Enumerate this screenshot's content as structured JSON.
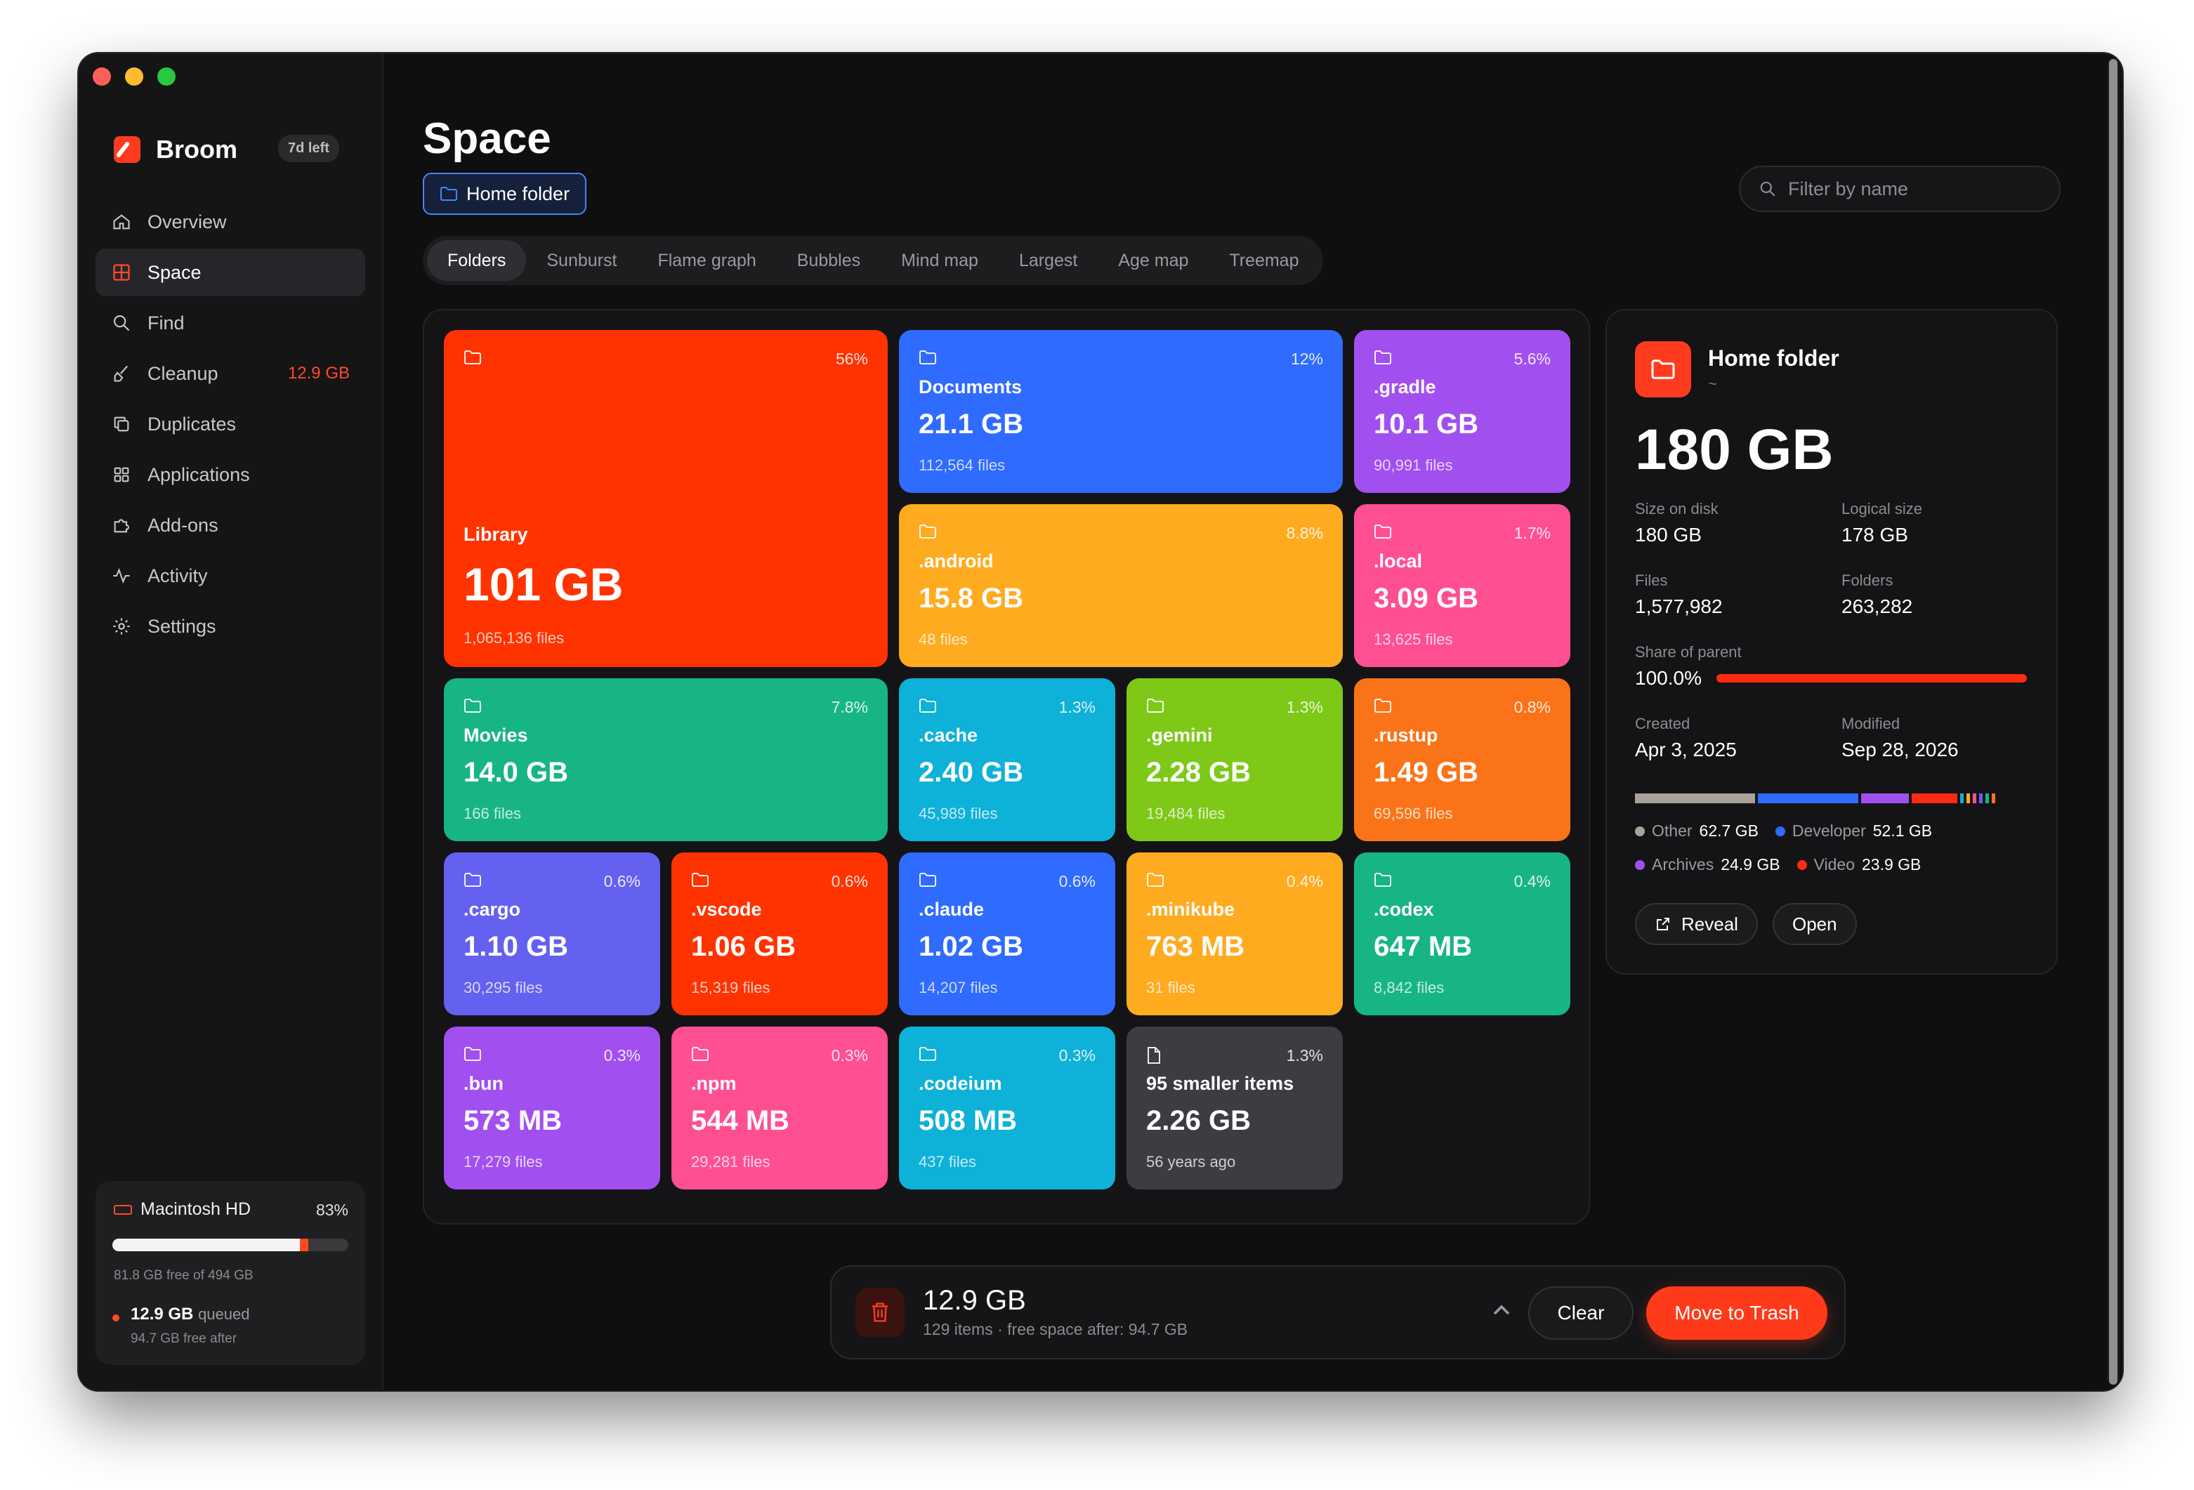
{
  "app": {
    "name": "Broom",
    "trial": "7d left"
  },
  "nav": [
    {
      "label": "Overview",
      "icon": "home-icon"
    },
    {
      "label": "Space",
      "icon": "grid-icon",
      "active": true
    },
    {
      "label": "Find",
      "icon": "search-icon"
    },
    {
      "label": "Cleanup",
      "icon": "broom-icon",
      "badge": "12.9 GB"
    },
    {
      "label": "Duplicates",
      "icon": "duplicate-icon"
    },
    {
      "label": "Applications",
      "icon": "apps-icon"
    },
    {
      "label": "Add-ons",
      "icon": "puzzle-icon"
    },
    {
      "label": "Activity",
      "icon": "activity-icon"
    },
    {
      "label": "Settings",
      "icon": "gear-icon"
    }
  ],
  "disk": {
    "name": "Macintosh HD",
    "percent": "83%",
    "used_fraction": 0.83,
    "free_text": "81.8 GB free of 494 GB",
    "queued_size": "12.9 GB",
    "queued_label": "queued",
    "free_after": "94.7 GB free after"
  },
  "page": {
    "title": "Space",
    "location_chip": "Home folder",
    "filter_placeholder": "Filter by name"
  },
  "tabs": [
    "Folders",
    "Sunburst",
    "Flame graph",
    "Bubbles",
    "Mind map",
    "Largest",
    "Age map",
    "Treemap"
  ],
  "tiles": [
    {
      "name": "Library",
      "pct": "56%",
      "size": "101 GB",
      "files": "1,065,136 files",
      "color": "#ff3300"
    },
    {
      "name": "Documents",
      "pct": "12%",
      "size": "21.1 GB",
      "files": "112,564 files",
      "color": "#2f6bff"
    },
    {
      "name": ".gradle",
      "pct": "5.6%",
      "size": "10.1 GB",
      "files": "90,991 files",
      "color": "#a24ff0"
    },
    {
      "name": ".android",
      "pct": "8.8%",
      "size": "15.8 GB",
      "files": "48 files",
      "color": "#ffab1f"
    },
    {
      "name": ".local",
      "pct": "1.7%",
      "size": "3.09 GB",
      "files": "13,625 files",
      "color": "#ff4f93"
    },
    {
      "name": "Movies",
      "pct": "7.8%",
      "size": "14.0 GB",
      "files": "166 files",
      "color": "#17b583"
    },
    {
      "name": ".cache",
      "pct": "1.3%",
      "size": "2.40 GB",
      "files": "45,989 files",
      "color": "#0eb1d8"
    },
    {
      "name": ".gemini",
      "pct": "1.3%",
      "size": "2.28 GB",
      "files": "19,484 files",
      "color": "#7ec818"
    },
    {
      "name": ".rustup",
      "pct": "0.8%",
      "size": "1.49 GB",
      "files": "69,596 files",
      "color": "#fb7318"
    },
    {
      "name": ".cargo",
      "pct": "0.6%",
      "size": "1.10 GB",
      "files": "30,295 files",
      "color": "#6460f0"
    },
    {
      "name": ".vscode",
      "pct": "0.6%",
      "size": "1.06 GB",
      "files": "15,319 files",
      "color": "#ff3300"
    },
    {
      "name": ".claude",
      "pct": "0.6%",
      "size": "1.02 GB",
      "files": "14,207 files",
      "color": "#2f6bff"
    },
    {
      "name": ".minikube",
      "pct": "0.4%",
      "size": "763 MB",
      "files": "31 files",
      "color": "#ffab1f"
    },
    {
      "name": ".codex",
      "pct": "0.4%",
      "size": "647 MB",
      "files": "8,842 files",
      "color": "#17b583"
    },
    {
      "name": ".bun",
      "pct": "0.3%",
      "size": "573 MB",
      "files": "17,279 files",
      "color": "#a24ff0"
    },
    {
      "name": ".npm",
      "pct": "0.3%",
      "size": "544 MB",
      "files": "29,281 files",
      "color": "#ff4f93"
    },
    {
      "name": ".codeium",
      "pct": "0.3%",
      "size": "508 MB",
      "files": "437 files",
      "color": "#0eb1d8"
    },
    {
      "name": "95 smaller items",
      "pct": "1.3%",
      "size": "2.26 GB",
      "files": "56 years ago",
      "color": "#3c3d41",
      "icon": "file-icon"
    }
  ],
  "detail": {
    "title": "Home folder",
    "path": "~",
    "size": "180 GB",
    "size_on_disk_label": "Size on disk",
    "size_on_disk": "180 GB",
    "logical_label": "Logical size",
    "logical": "178 GB",
    "files_label": "Files",
    "files": "1,577,982",
    "folders_label": "Folders",
    "folders": "263,282",
    "share_label": "Share of parent",
    "share": "100.0%",
    "share_fraction": 1.0,
    "created_label": "Created",
    "created": "Apr 3, 2025",
    "modified_label": "Modified",
    "modified": "Sep 28, 2026",
    "types": [
      {
        "name": "Other",
        "size": "62.7 GB",
        "gb": 62.7,
        "color": "#a8a29a"
      },
      {
        "name": "Developer",
        "size": "52.1 GB",
        "gb": 52.1,
        "color": "#2f6bff"
      },
      {
        "name": "Archives",
        "size": "24.9 GB",
        "gb": 24.9,
        "color": "#a24ff0"
      },
      {
        "name": "Video",
        "size": "23.9 GB",
        "gb": 23.9,
        "color": "#ff2a12"
      }
    ],
    "minor_type_colors": [
      "#0eb1d8",
      "#ffab1f",
      "#ff4f93",
      "#6460f0",
      "#17b583",
      "#fb7318"
    ],
    "reveal_label": "Reveal",
    "open_label": "Open"
  },
  "bottom_bar": {
    "size": "12.9 GB",
    "summary": "129 items · free space after: 94.7 GB",
    "clear_label": "Clear",
    "trash_label": "Move to Trash"
  }
}
